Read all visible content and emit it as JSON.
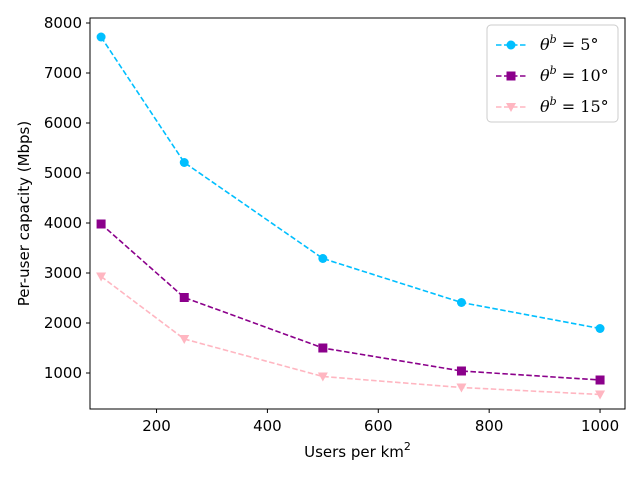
{
  "chart_data": {
    "type": "line",
    "xlabel": "Users per km",
    "xlabel_sup": "2",
    "ylabel": "Per-user capacity (Mbps)",
    "xlim": [
      80,
      1045
    ],
    "ylim": [
      280,
      8100
    ],
    "xticks": [
      200,
      400,
      600,
      800,
      1000
    ],
    "yticks": [
      1000,
      2000,
      3000,
      4000,
      5000,
      6000,
      7000,
      8000
    ],
    "grid": false,
    "legend_position": "top-right",
    "x": [
      100,
      250,
      500,
      750,
      1000
    ],
    "series": [
      {
        "name": "θ^b = 5°",
        "label_var": "θ",
        "label_sup": "b",
        "label_rest": " = 5°",
        "color": "#00BFFF",
        "marker": "circle",
        "linestyle": "dashed",
        "values": [
          7720,
          5210,
          3290,
          2410,
          1890
        ]
      },
      {
        "name": "θ^b = 10°",
        "label_var": "θ",
        "label_sup": "b",
        "label_rest": " = 10°",
        "color": "#8B008B",
        "marker": "square",
        "linestyle": "dashed",
        "values": [
          3980,
          2510,
          1500,
          1040,
          860
        ]
      },
      {
        "name": "θ^b = 15°",
        "label_var": "θ",
        "label_sup": "b",
        "label_rest": " = 15°",
        "color": "#FFB6C1",
        "marker": "triangle-down",
        "linestyle": "dashed",
        "values": [
          2930,
          1680,
          930,
          710,
          570
        ]
      }
    ]
  }
}
